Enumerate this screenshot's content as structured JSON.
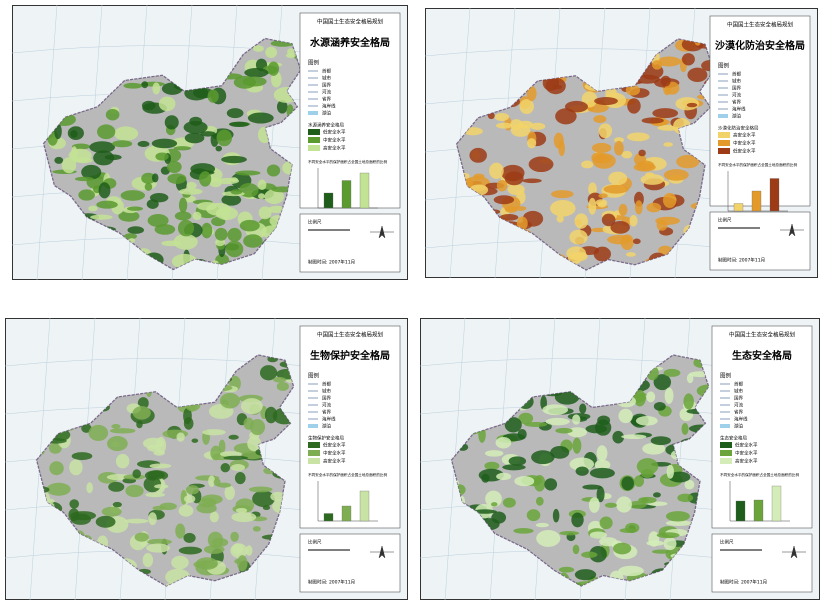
{
  "panels": [
    {
      "header": "中国国土生态安全格局规划",
      "title": "水源涵养安全格局",
      "legend_title": "图例",
      "legend_items": [
        "首都",
        "城市",
        "国界",
        "河流",
        "省界",
        "海岸线",
        "湖泊"
      ],
      "category_title": "水源涵养安全格局",
      "levels": [
        "低安全水平",
        "中安全水平",
        "高安全水平"
      ],
      "level_colors": [
        "#1f5d1a",
        "#5a9a2f",
        "#c3e394"
      ],
      "chart_title": "不同安全水平的保护面积占全国土地总面积的比例",
      "bars": [
        30,
        55,
        70
      ],
      "footer": [
        "比例尺",
        "制图时间: 2007年11月"
      ]
    },
    {
      "header": "中国国土生态安全格局规划",
      "title": "沙漠化防治安全格局",
      "legend_title": "图例",
      "legend_items": [
        "首都",
        "城市",
        "国界",
        "河流",
        "省界",
        "海岸线",
        "湖泊"
      ],
      "category_title": "沙漠化防治安全格局",
      "levels": [
        "高安全水平",
        "中安全水平",
        "低安全水平"
      ],
      "level_colors": [
        "#f2d36a",
        "#e39a2a",
        "#9c3b16"
      ],
      "chart_title": "不同安全水平的保护面积占全国土地总面积的比例",
      "bars": [
        15,
        40,
        65
      ],
      "footer": [
        "比例尺",
        "制图时间: 2007年11月"
      ]
    },
    {
      "header": "中国国土生态安全格局规划",
      "title": "生物保护安全格局",
      "legend_title": "图例",
      "legend_items": [
        "首都",
        "城市",
        "国界",
        "河流",
        "省界",
        "海岸线",
        "湖泊"
      ],
      "category_title": "生物保护安全格局",
      "levels": [
        "低安全水平",
        "中安全水平",
        "高安全水平"
      ],
      "level_colors": [
        "#2d6a1f",
        "#7fae52",
        "#c9e3a5"
      ],
      "chart_title": "不同安全水平的保护面积占全国土地总面积的比例",
      "bars": [
        15,
        30,
        60
      ],
      "footer": [
        "比例尺",
        "制图时间: 2007年11月"
      ]
    },
    {
      "header": "中国国土生态安全格局规划",
      "title": "生态安全格局",
      "legend_title": "图例",
      "legend_items": [
        "首都",
        "城市",
        "国界",
        "河流",
        "省界",
        "海岸线",
        "湖泊"
      ],
      "category_title": "生态安全格局",
      "levels": [
        "低安全水平",
        "中安全水平",
        "高安全水平"
      ],
      "level_colors": [
        "#1e5e1c",
        "#6aa43a",
        "#d4edb8"
      ],
      "chart_title": "不同安全水平的保护面积占全国土地总面积的比例",
      "bars": [
        40,
        42,
        70
      ],
      "footer": [
        "比例尺",
        "制图时间: 2007年11月"
      ]
    }
  ]
}
